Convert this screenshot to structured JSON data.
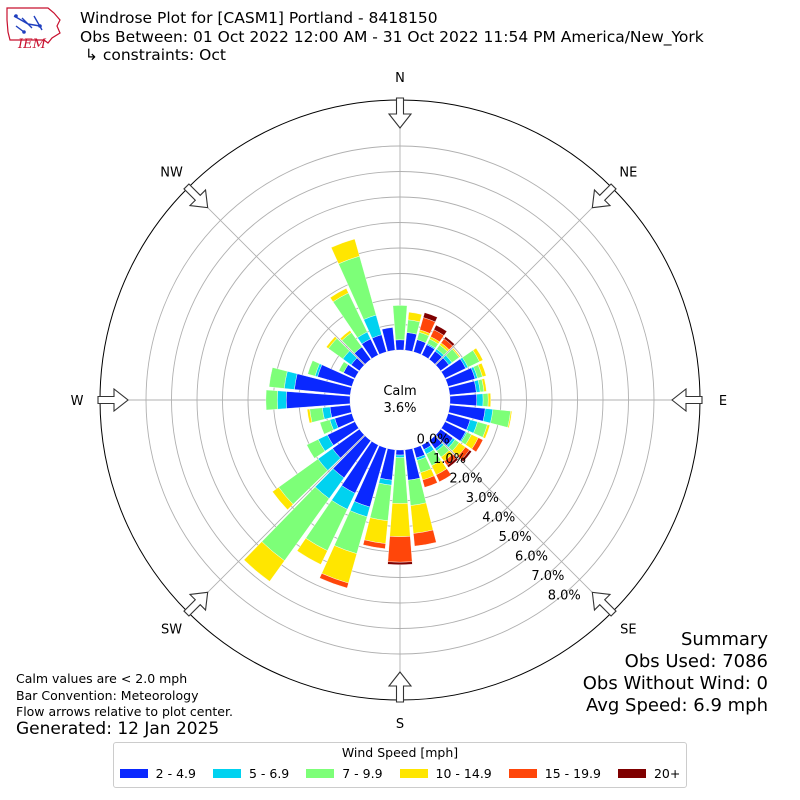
{
  "header": {
    "logo_text": "IEM",
    "title_line1": "Windrose Plot for [CASM1] Portland - 8418150",
    "title_line2": "Obs Between: 01 Oct 2022 12:00 AM - 31 Oct 2022 11:54 PM America/New_York",
    "title_line3": " ↳ constraints: Oct"
  },
  "notes": {
    "line1": "Calm values are < 2.0 mph",
    "line2": "Bar Convention: Meteorology",
    "line3": "Flow arrows relative to plot center.",
    "generated": "Generated: 12 Jan 2025"
  },
  "summary": {
    "heading": "Summary",
    "obs_used": "Obs Used: 7086",
    "obs_without_wind": "Obs Without Wind: 0",
    "avg_speed": "Avg Speed: 6.9 mph"
  },
  "legend": {
    "title": "Wind Speed [mph]",
    "items": [
      {
        "label": "2 - 4.9",
        "color": "#0a28ff"
      },
      {
        "label": "5 - 6.9",
        "color": "#00d2f0"
      },
      {
        "label": "7 - 9.9",
        "color": "#7dff78"
      },
      {
        "label": "10 - 14.9",
        "color": "#ffe600"
      },
      {
        "label": "15 - 19.9",
        "color": "#ff460a"
      },
      {
        "label": "20+",
        "color": "#7f0000"
      }
    ]
  },
  "chart_data": {
    "type": "windrose",
    "calm_label": "Calm",
    "calm_value": "3.6%",
    "directions": [
      "N",
      "NE",
      "E",
      "SE",
      "S",
      "SW",
      "W",
      "NW"
    ],
    "radial_tick_labels": [
      "0.0%",
      "1.0%",
      "2.0%",
      "3.0%",
      "4.0%",
      "5.0%",
      "6.0%",
      "7.0%",
      "8.0%"
    ],
    "bar_convention": "meteorology",
    "bin_width_deg": 10,
    "series_names": [
      "2 - 4.9",
      "5 - 6.9",
      "7 - 9.9",
      "10 - 14.9",
      "15 - 19.9",
      "20+"
    ],
    "colors": [
      "#0a28ff",
      "#00d2f0",
      "#7dff78",
      "#ffe600",
      "#ff460a",
      "#7f0000"
    ],
    "bins": [
      {
        "dir": 0,
        "values": [
          0.4,
          0.0,
          1.35,
          0.0,
          0.0,
          0.0
        ]
      },
      {
        "dir": 10,
        "values": [
          0.7,
          0.0,
          0.5,
          0.3,
          0.0,
          0.0
        ]
      },
      {
        "dir": 20,
        "values": [
          0.5,
          0.0,
          0.3,
          0.1,
          0.5,
          0.2
        ]
      },
      {
        "dir": 30,
        "values": [
          0.45,
          0.05,
          0.2,
          0.1,
          0.3,
          0.2
        ]
      },
      {
        "dir": 40,
        "values": [
          0.4,
          0.1,
          0.2,
          0.1,
          0.2,
          0.1
        ]
      },
      {
        "dir": 50,
        "values": [
          0.4,
          0.15,
          0.35,
          0.05,
          0.0,
          0.0
        ]
      },
      {
        "dir": 60,
        "values": [
          0.9,
          0.1,
          0.5,
          0.15,
          0.0,
          0.0
        ]
      },
      {
        "dir": 70,
        "values": [
          1.1,
          0.1,
          0.2,
          0.15,
          0.0,
          0.0
        ]
      },
      {
        "dir": 80,
        "values": [
          1.05,
          0.15,
          0.15,
          0.1,
          0.0,
          0.0
        ]
      },
      {
        "dir": 90,
        "values": [
          1.05,
          0.25,
          0.2,
          0.1,
          0.0,
          0.0
        ]
      },
      {
        "dir": 100,
        "values": [
          1.4,
          0.3,
          0.7,
          0.05,
          0.0,
          0.0
        ]
      },
      {
        "dir": 110,
        "values": [
          0.9,
          0.3,
          0.4,
          0.1,
          0.0,
          0.0
        ]
      },
      {
        "dir": 120,
        "values": [
          0.9,
          0.05,
          0.2,
          0.3,
          0.2,
          0.0
        ]
      },
      {
        "dir": 130,
        "values": [
          0.6,
          0.1,
          0.2,
          0.3,
          0.2,
          0.1
        ]
      },
      {
        "dir": 140,
        "values": [
          0.4,
          0.1,
          0.3,
          0.2,
          0.2,
          0.1
        ]
      },
      {
        "dir": 150,
        "values": [
          0.2,
          0.2,
          0.5,
          0.4,
          0.3,
          0.0
        ]
      },
      {
        "dir": 160,
        "values": [
          0.4,
          0.1,
          0.5,
          0.3,
          0.3,
          0.0
        ]
      },
      {
        "dir": 170,
        "values": [
          1.2,
          0.0,
          1.0,
          1.1,
          0.5,
          0.0
        ]
      },
      {
        "dir": 180,
        "values": [
          0.2,
          0.1,
          1.8,
          1.3,
          1.0,
          0.1
        ]
      },
      {
        "dir": 190,
        "values": [
          1.2,
          0.2,
          1.4,
          0.9,
          0.2,
          0.0
        ]
      },
      {
        "dir": 200,
        "values": [
          2.4,
          0.4,
          1.5,
          1.2,
          0.2,
          0.0
        ]
      },
      {
        "dir": 210,
        "values": [
          2.1,
          0.7,
          1.8,
          0.6,
          0.0,
          0.0
        ]
      },
      {
        "dir": 220,
        "values": [
          1.8,
          1.0,
          3.0,
          1.0,
          0.0,
          0.0
        ]
      },
      {
        "dir": 230,
        "values": [
          1.3,
          0.7,
          1.9,
          0.3,
          0.0,
          0.0
        ]
      },
      {
        "dir": 240,
        "values": [
          1.2,
          0.4,
          0.5,
          0.0,
          0.0,
          0.0
        ]
      },
      {
        "dir": 250,
        "values": [
          0.7,
          0.2,
          0.4,
          0.0,
          0.0,
          0.0
        ]
      },
      {
        "dir": 260,
        "values": [
          0.8,
          0.3,
          0.5,
          0.1,
          0.0,
          0.0
        ]
      },
      {
        "dir": 270,
        "values": [
          2.5,
          0.35,
          0.45,
          0.0,
          0.0,
          0.0
        ]
      },
      {
        "dir": 280,
        "values": [
          2.2,
          0.4,
          0.6,
          0.0,
          0.0,
          0.0
        ]
      },
      {
        "dir": 290,
        "values": [
          1.4,
          0.1,
          0.3,
          0.0,
          0.0,
          0.0
        ]
      },
      {
        "dir": 300,
        "values": [
          0.5,
          0.0,
          0.2,
          0.0,
          0.0,
          0.0
        ]
      },
      {
        "dir": 310,
        "values": [
          0.4,
          0.4,
          0.7,
          0.1,
          0.0,
          0.0
        ]
      },
      {
        "dir": 320,
        "values": [
          0.6,
          0.0,
          0.7,
          0.1,
          0.0,
          0.0
        ]
      },
      {
        "dir": 330,
        "values": [
          0.7,
          0.3,
          1.7,
          0.2,
          0.0,
          0.0
        ]
      },
      {
        "dir": 340,
        "values": [
          0.7,
          0.8,
          2.4,
          0.7,
          0.0,
          0.0
        ]
      },
      {
        "dir": 350,
        "values": [
          0.9,
          0.0,
          0.0,
          0.0,
          0.0,
          0.0
        ]
      }
    ]
  }
}
